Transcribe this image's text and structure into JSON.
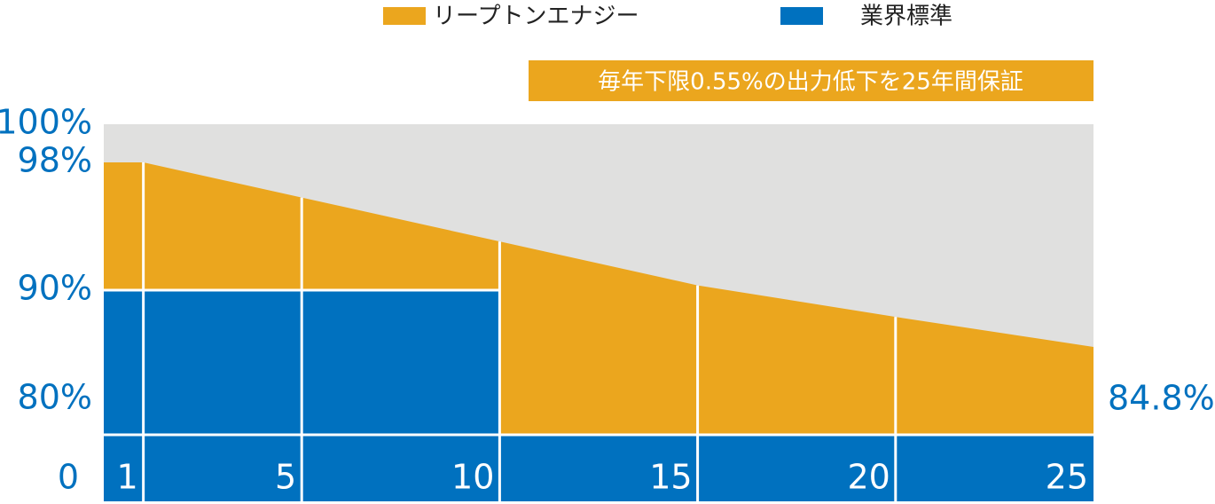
{
  "chart_data": {
    "type": "area",
    "annotation": "毎年下限0.55%の出力低下を25年間保証",
    "xlim": [
      0,
      25
    ],
    "xticks": [
      0,
      1,
      5,
      10,
      15,
      20,
      25
    ],
    "ylim": [
      80,
      100
    ],
    "yticks": [
      {
        "value": 80,
        "label": "80%"
      },
      {
        "value": 90,
        "label": "90%"
      },
      {
        "value": 98,
        "label": "98%"
      },
      {
        "value": 100,
        "label": "100%"
      }
    ],
    "background": "#e0e0df",
    "series": [
      {
        "name": "リープトンエナジー",
        "color": "#eba61e",
        "x": [
          0,
          1,
          5,
          10,
          15,
          20,
          25
        ],
        "values": [
          98,
          98,
          95.8,
          93.05,
          90.3,
          87.55,
          84.8
        ],
        "value_labels": [
          null,
          null,
          null,
          null,
          null,
          null,
          "84.8%"
        ]
      },
      {
        "name": "業界標準",
        "color": "#0071bf",
        "x": [
          0,
          10
        ],
        "values": [
          90,
          90
        ]
      }
    ]
  }
}
